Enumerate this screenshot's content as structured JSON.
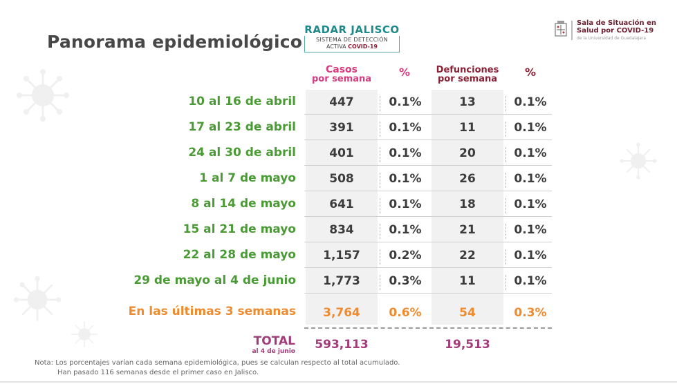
{
  "title": "Panorama epidemiológico",
  "radar_logo": {
    "title": "RADAR JALISCO",
    "line1": "SISTEMA DE DETECCIÓN",
    "line2_prefix": "ACTIVA ",
    "line2_bold": "COVID-19"
  },
  "sala_logo": {
    "line1": "Sala de Situación en",
    "line2": "Salud por COVID-19",
    "line3": "de la Universidad de Guadalajara"
  },
  "headers": {
    "casos_l1": "Casos",
    "casos_l2": "por semana",
    "pct1": "%",
    "def_l1": "Defunciones",
    "def_l2": "por semana",
    "pct2": "%"
  },
  "rows": [
    {
      "label": "10 al 16 de abril",
      "casos": "447",
      "pct_casos": "0.1%",
      "def": "13",
      "pct_def": "0.1%"
    },
    {
      "label": "17 al 23 de abril",
      "casos": "391",
      "pct_casos": "0.1%",
      "def": "11",
      "pct_def": "0.1%"
    },
    {
      "label": "24 al 30 de abril",
      "casos": "401",
      "pct_casos": "0.1%",
      "def": "20",
      "pct_def": "0.1%"
    },
    {
      "label": "1 al 7 de mayo",
      "casos": "508",
      "pct_casos": "0.1%",
      "def": "26",
      "pct_def": "0.1%"
    },
    {
      "label": "8 al 14 de mayo",
      "casos": "641",
      "pct_casos": "0.1%",
      "def": "18",
      "pct_def": "0.1%"
    },
    {
      "label": "15 al 21 de mayo",
      "casos": "834",
      "pct_casos": "0.1%",
      "def": "21",
      "pct_def": "0.1%"
    },
    {
      "label": "22 al 28 de mayo",
      "casos": "1,157",
      "pct_casos": "0.2%",
      "def": "22",
      "pct_def": "0.1%"
    },
    {
      "label": "29 de mayo al 4 de junio",
      "casos": "1,773",
      "pct_casos": "0.3%",
      "def": "11",
      "pct_def": "0.1%"
    }
  ],
  "summary": {
    "label": "En las últimas 3 semanas",
    "casos": "3,764",
    "pct_casos": "0.6%",
    "def": "54",
    "pct_def": "0.3%"
  },
  "total": {
    "label": "TOTAL",
    "sub": "al 4 de junio",
    "casos": "593,113",
    "def": "19,513"
  },
  "note": {
    "line1": "Nota: Los porcentajes varían cada semana epidemiológica, pues se calculan respecto al total acumulado.",
    "line2": "Han pasado 116 semanas desde el primer caso en Jalisco."
  },
  "colors": {
    "green_label": "#4a9a35",
    "orange_summary": "#ef8a2d",
    "pink_header": "#d63b80",
    "maroon_header": "#8b2035",
    "total_purple": "#a23d7a"
  },
  "icons": [
    "virus-icon",
    "university-crest-icon"
  ]
}
